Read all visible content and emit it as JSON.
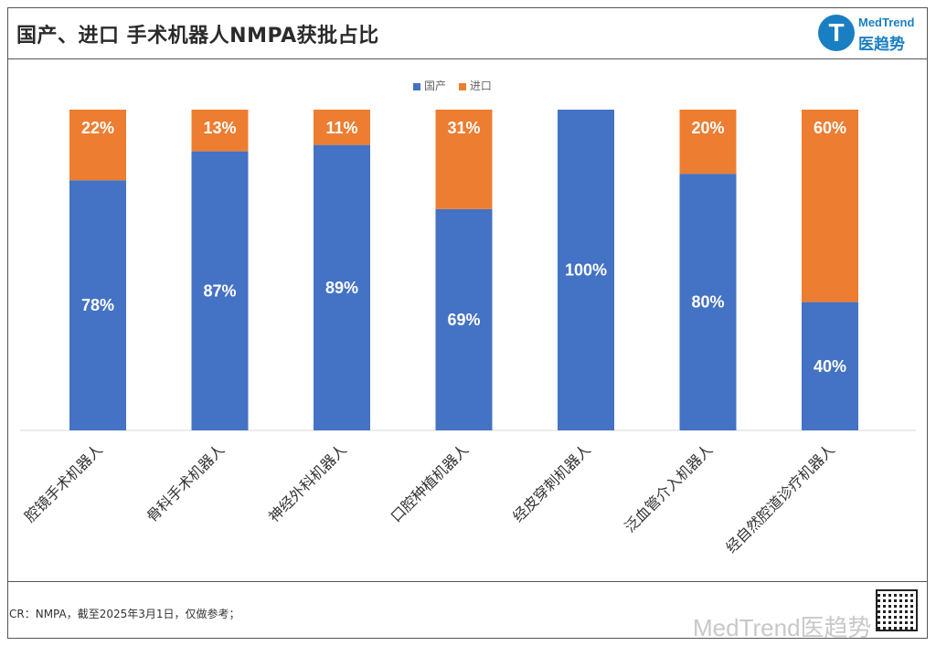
{
  "header": {
    "title": "国产、进口 手术机器人NMPA获批占比",
    "logo_text_en": "MedTrend",
    "logo_text_cn": "医趋势",
    "logo_icon": "T"
  },
  "legend": {
    "items": [
      {
        "label": "国产",
        "color": "#4472C4"
      },
      {
        "label": "进口",
        "color": "#ED7D31"
      }
    ]
  },
  "chart_data": {
    "type": "bar",
    "stacked": true,
    "categories": [
      "腔镜手术机器人",
      "骨科手术机器人",
      "神经外科机器人",
      "口腔种植机器人",
      "经皮穿刺机器人",
      "泛血管介入机器人",
      "经自然腔道诊疗机器人"
    ],
    "series": [
      {
        "name": "国产",
        "color": "#4472C4",
        "values": [
          78,
          87,
          89,
          69,
          100,
          80,
          40
        ]
      },
      {
        "name": "进口",
        "color": "#ED7D31",
        "values": [
          22,
          13,
          11,
          31,
          0,
          20,
          60
        ]
      }
    ],
    "data_labels": {
      "国产": [
        "78%",
        "87%",
        "89%",
        "69%",
        "100%",
        "80%",
        "40%"
      ],
      "进口": [
        "22%",
        "13%",
        "11%",
        "31%",
        "",
        "20%",
        "60%"
      ]
    },
    "ylim": [
      0,
      100
    ],
    "legend_position": "top-center",
    "grid": false
  },
  "footer": {
    "source": "CR：NMPA，截至2025年3月1日，仅做参考；",
    "watermark": "MedTrend医趋势"
  }
}
